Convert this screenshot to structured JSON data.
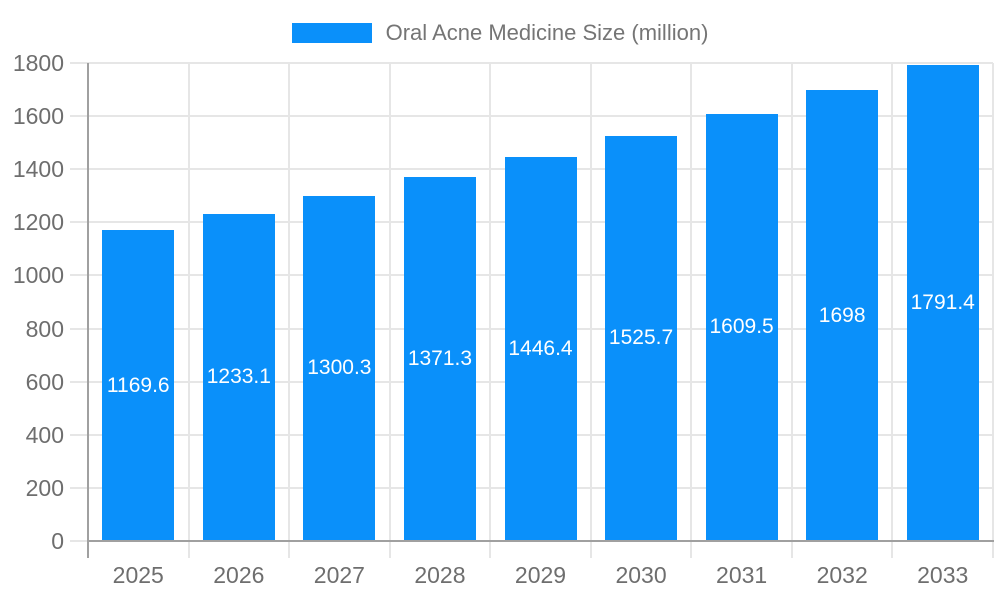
{
  "legend": {
    "label": "Oral Acne Medicine Size (million)"
  },
  "chart_data": {
    "type": "bar",
    "title": "Oral Acne Medicine Size (million)",
    "categories": [
      "2025",
      "2026",
      "2027",
      "2028",
      "2029",
      "2030",
      "2031",
      "2032",
      "2033"
    ],
    "values": [
      1169.6,
      1233.1,
      1300.3,
      1371.3,
      1446.4,
      1525.7,
      1609.5,
      1698,
      1791.4
    ],
    "value_labels": [
      "1169.6",
      "1233.1",
      "1300.3",
      "1371.3",
      "1446.4",
      "1525.7",
      "1609.5",
      "1698",
      "1791.4"
    ],
    "xlabel": "",
    "ylabel": "",
    "ylim": [
      0,
      1800
    ],
    "ytick_step": 200,
    "ytick_labels": [
      "0",
      "200",
      "400",
      "600",
      "800",
      "1000",
      "1200",
      "1400",
      "1600",
      "1800"
    ],
    "grid": true,
    "legend_position": "top",
    "colors": {
      "bar": "#0A90FA",
      "grid": "#E6E6E6",
      "axis": "#A0A0A0",
      "tick_text": "#6E6E6E",
      "legend_text": "#757575",
      "value_label": "#FFFFFF",
      "background": "#FFFFFF"
    }
  }
}
